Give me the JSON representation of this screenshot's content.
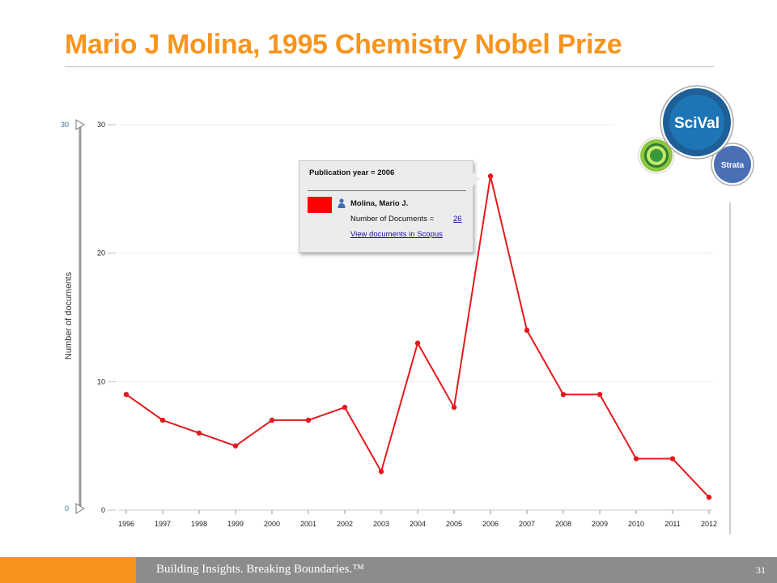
{
  "slide": {
    "title": "Mario J Molina, 1995 Chemistry Nobel Prize",
    "footer_tagline": "Building Insights. Breaking Boundaries.™",
    "page_number": "31"
  },
  "colors": {
    "title": "#f7941d",
    "series": "#e41a1c",
    "footer_bar": "#8c8c8c",
    "footer_accent": "#f7941d",
    "link": "#1a0dab"
  },
  "logos": {
    "primary": "SciVal",
    "secondary": "Strata"
  },
  "chart_data": {
    "type": "line",
    "x": [
      "1996",
      "1997",
      "1998",
      "1999",
      "2000",
      "2001",
      "2002",
      "2003",
      "2004",
      "2005",
      "2006",
      "2007",
      "2008",
      "2009",
      "2010",
      "2011",
      "2012"
    ],
    "series": [
      {
        "values": [
          9,
          7,
          6,
          5,
          7,
          7,
          8,
          3,
          13,
          8,
          26,
          14,
          9,
          9,
          4,
          4,
          1
        ]
      }
    ],
    "ylabel": "Number of documents",
    "ylim": [
      0,
      30
    ],
    "yticks": [
      "0",
      "10",
      "20",
      "30"
    ],
    "range_slider": {
      "min_label": "0",
      "max_label": "30"
    },
    "grid": true,
    "tooltip": {
      "heading": "Publication year = 2006",
      "author": "Molina, Mario J.",
      "docs_label": "Number of Documents =",
      "docs_value": "26",
      "link": "View documents in Scopus"
    }
  }
}
